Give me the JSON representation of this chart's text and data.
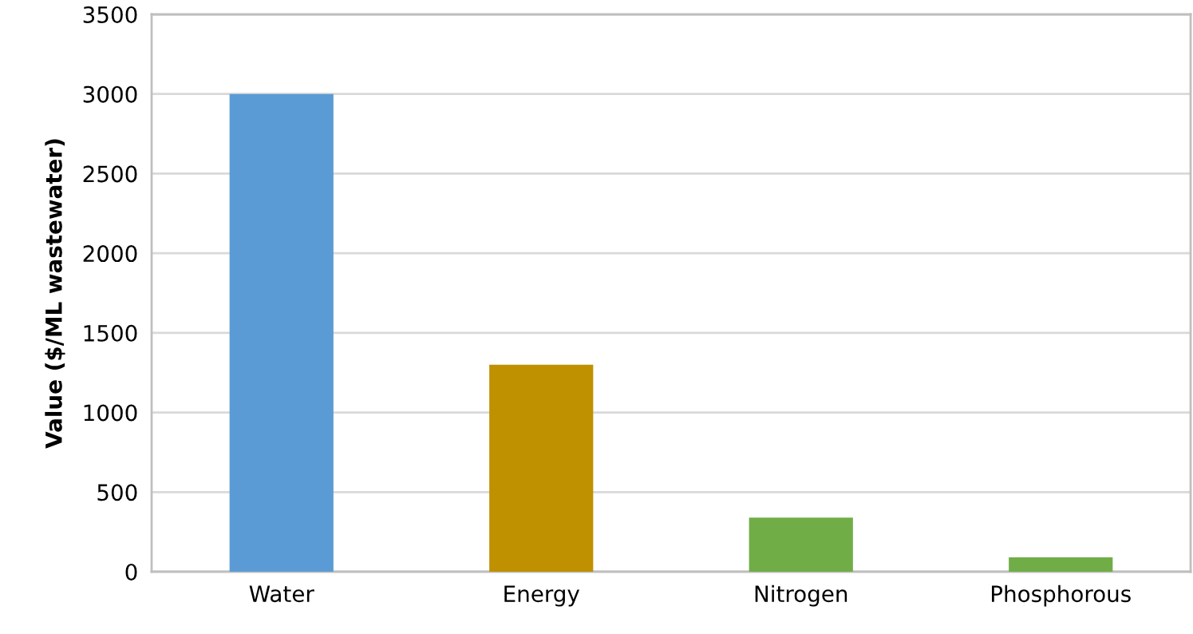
{
  "chart_data": {
    "type": "bar",
    "ylabel": "Value ($/ML wastewater)",
    "categories": [
      "Water",
      "Energy",
      "Nitrogen",
      "Phosphorous"
    ],
    "values": [
      3000,
      1300,
      340,
      90
    ],
    "colors": [
      "#5b9bd5",
      "#bf9000",
      "#70ad47",
      "#70ad47"
    ],
    "ylim": [
      0,
      3500
    ],
    "yticks": [
      0,
      500,
      1000,
      1500,
      2000,
      2500,
      3000,
      3500
    ],
    "grid": "y",
    "legend": false
  }
}
